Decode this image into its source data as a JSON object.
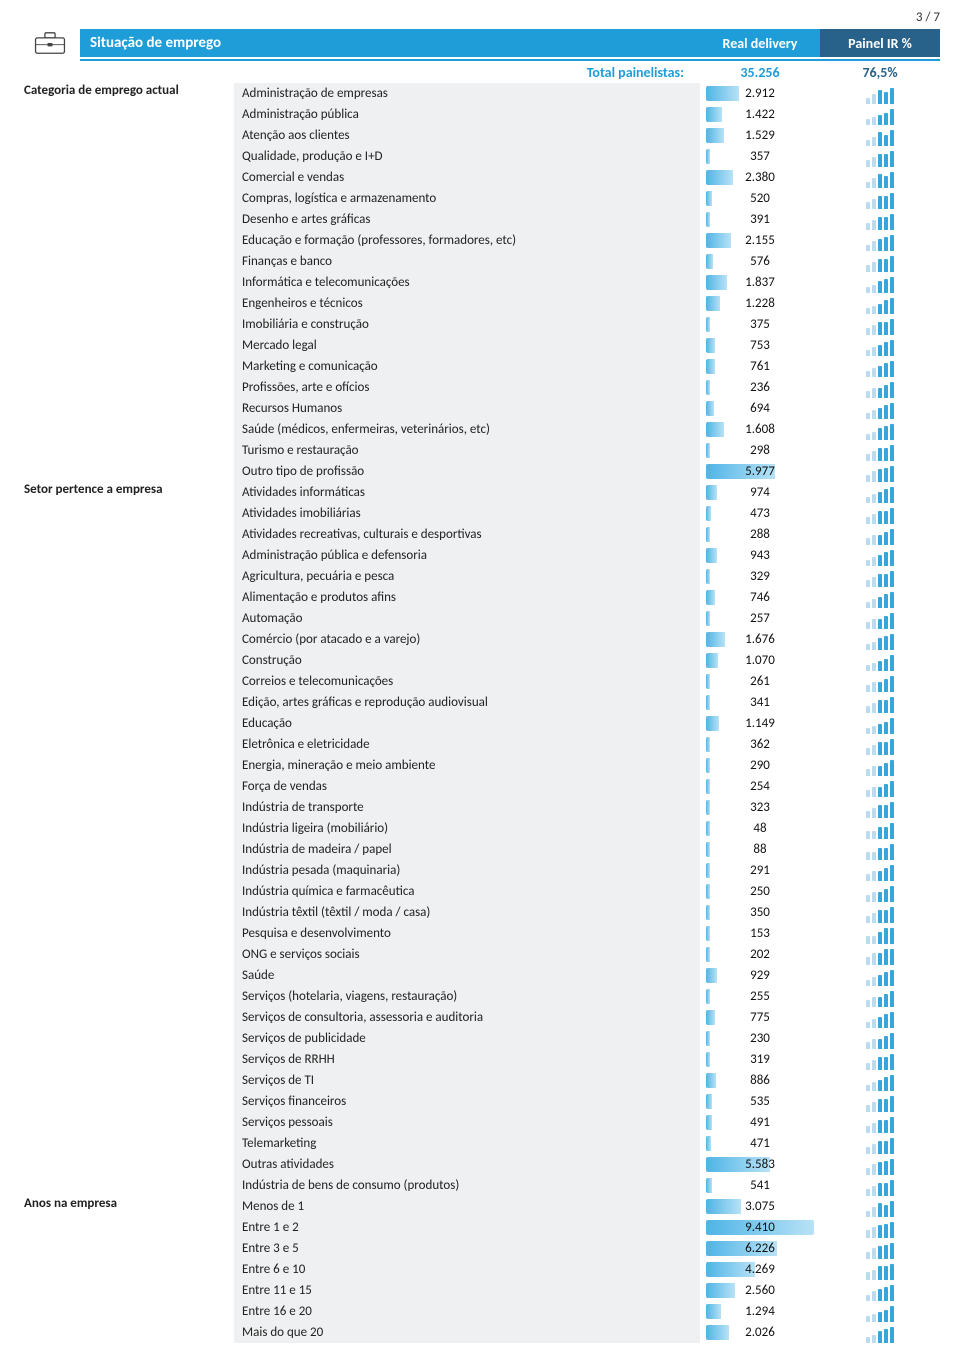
{
  "page_number": "3 / 7",
  "header": {
    "title": "Situação de emprego",
    "col1": "Real delivery",
    "col2": "Painel IR %"
  },
  "total_row": {
    "label": "Total painelistas:",
    "value1": "35.256",
    "value2": "76,5%"
  },
  "bar_max": 9410,
  "colors": {
    "primary": "#1f9dd9",
    "secondary": "#28628a",
    "row_bg": "#eef0f1",
    "bar_start": "#4fb4e6",
    "bar_end": "#b8e2f6"
  },
  "groups": [
    {
      "name": "Categoria de emprego actual",
      "rows": [
        {
          "label": "Administração de empresas",
          "value_text": "2.912",
          "value_num": 2912,
          "spark": [
            1,
            3,
            5,
            4,
            6
          ]
        },
        {
          "label": "Administração pública",
          "value_text": "1.422",
          "value_num": 1422,
          "spark": [
            1,
            2,
            3,
            4,
            6
          ]
        },
        {
          "label": "Atenção aos clientes",
          "value_text": "1.529",
          "value_num": 1529,
          "spark": [
            1,
            2,
            4,
            3,
            5
          ]
        },
        {
          "label": "Qualidade, produção e I+D",
          "value_text": "357",
          "value_num": 357,
          "spark": [
            1,
            2,
            3,
            3,
            4
          ]
        },
        {
          "label": "Comercial e vendas",
          "value_text": "2.380",
          "value_num": 2380,
          "spark": [
            1,
            3,
            5,
            4,
            6
          ]
        },
        {
          "label": "Compras, logística e armazenamento",
          "value_text": "520",
          "value_num": 520,
          "spark": [
            1,
            2,
            3,
            3,
            4
          ]
        },
        {
          "label": "Desenho e artes gráficas",
          "value_text": "391",
          "value_num": 391,
          "spark": [
            1,
            2,
            3,
            3,
            4
          ]
        },
        {
          "label": "Educação e formação (professores, formadores, etc)",
          "value_text": "2.155",
          "value_num": 2155,
          "spark": [
            1,
            3,
            4,
            5,
            6
          ]
        },
        {
          "label": "Finanças e banco",
          "value_text": "576",
          "value_num": 576,
          "spark": [
            1,
            2,
            3,
            3,
            4
          ]
        },
        {
          "label": "Informática e telecomunicações",
          "value_text": "1.837",
          "value_num": 1837,
          "spark": [
            1,
            2,
            4,
            5,
            6
          ]
        },
        {
          "label": "Engenheiros e técnicos",
          "value_text": "1.228",
          "value_num": 1228,
          "spark": [
            1,
            2,
            3,
            5,
            6
          ]
        },
        {
          "label": "Imobiliária e construção",
          "value_text": "375",
          "value_num": 375,
          "spark": [
            1,
            2,
            3,
            3,
            4
          ]
        },
        {
          "label": "Mercado legal",
          "value_text": "753",
          "value_num": 753,
          "spark": [
            1,
            2,
            3,
            4,
            5
          ]
        },
        {
          "label": "Marketing e comunicação",
          "value_text": "761",
          "value_num": 761,
          "spark": [
            1,
            2,
            3,
            4,
            5
          ]
        },
        {
          "label": "Profissões, arte e ofícios",
          "value_text": "236",
          "value_num": 236,
          "spark": [
            1,
            2,
            2,
            3,
            4
          ]
        },
        {
          "label": "Recursos Humanos",
          "value_text": "694",
          "value_num": 694,
          "spark": [
            1,
            2,
            3,
            4,
            5
          ]
        },
        {
          "label": "Saúde (médicos, enfermeiras, veterinários, etc)",
          "value_text": "1.608",
          "value_num": 1608,
          "spark": [
            1,
            2,
            4,
            5,
            6
          ]
        },
        {
          "label": "Turismo e restauração",
          "value_text": "298",
          "value_num": 298,
          "spark": [
            1,
            2,
            3,
            3,
            4
          ]
        },
        {
          "label": "Outro tipo de profissão",
          "value_text": "5.977",
          "value_num": 5977,
          "spark": [
            2,
            4,
            5,
            6,
            7
          ]
        }
      ]
    },
    {
      "name": "Setor pertence a empresa",
      "rows": [
        {
          "label": "Atividades informáticas",
          "value_text": "974",
          "value_num": 974,
          "spark": [
            1,
            2,
            3,
            4,
            5
          ]
        },
        {
          "label": "Atividades imobiliárias",
          "value_text": "473",
          "value_num": 473,
          "spark": [
            1,
            2,
            3,
            3,
            4
          ]
        },
        {
          "label": "Atividades recreativas, culturais e desportivas",
          "value_text": "288",
          "value_num": 288,
          "spark": [
            1,
            2,
            2,
            3,
            4
          ]
        },
        {
          "label": "Administração pública e defensoria",
          "value_text": "943",
          "value_num": 943,
          "spark": [
            1,
            2,
            3,
            4,
            5
          ]
        },
        {
          "label": "Agricultura, pecuária e pesca",
          "value_text": "329",
          "value_num": 329,
          "spark": [
            1,
            2,
            3,
            3,
            4
          ]
        },
        {
          "label": "Alimentação e produtos afins",
          "value_text": "746",
          "value_num": 746,
          "spark": [
            1,
            2,
            3,
            4,
            5
          ]
        },
        {
          "label": "Automação",
          "value_text": "257",
          "value_num": 257,
          "spark": [
            1,
            2,
            2,
            3,
            4
          ]
        },
        {
          "label": "Comércio (por atacado e a varejo)",
          "value_text": "1.676",
          "value_num": 1676,
          "spark": [
            1,
            2,
            4,
            5,
            6
          ]
        },
        {
          "label": "Construção",
          "value_text": "1.070",
          "value_num": 1070,
          "spark": [
            1,
            2,
            3,
            4,
            6
          ]
        },
        {
          "label": "Correios e telecomunicações",
          "value_text": "261",
          "value_num": 261,
          "spark": [
            1,
            2,
            2,
            3,
            4
          ]
        },
        {
          "label": "Edição, artes gráficas e reprodução audiovisual",
          "value_text": "341",
          "value_num": 341,
          "spark": [
            1,
            2,
            3,
            3,
            4
          ]
        },
        {
          "label": "Educação",
          "value_text": "1.149",
          "value_num": 1149,
          "spark": [
            1,
            2,
            3,
            4,
            6
          ]
        },
        {
          "label": "Eletrônica e eletricidade",
          "value_text": "362",
          "value_num": 362,
          "spark": [
            1,
            2,
            3,
            3,
            4
          ]
        },
        {
          "label": "Energia, mineração e meio ambiente",
          "value_text": "290",
          "value_num": 290,
          "spark": [
            1,
            2,
            2,
            3,
            4
          ]
        },
        {
          "label": "Força de vendas",
          "value_text": "254",
          "value_num": 254,
          "spark": [
            1,
            2,
            2,
            3,
            4
          ]
        },
        {
          "label": "Indústria de transporte",
          "value_text": "323",
          "value_num": 323,
          "spark": [
            1,
            2,
            3,
            3,
            4
          ]
        },
        {
          "label": "Indústria ligeira (mobiliário)",
          "value_text": "48",
          "value_num": 48,
          "spark": [
            1,
            1,
            2,
            2,
            3
          ]
        },
        {
          "label": "Indústria de madeira / papel",
          "value_text": "88",
          "value_num": 88,
          "spark": [
            1,
            1,
            2,
            2,
            3
          ]
        },
        {
          "label": "Indústria pesada (maquinaria)",
          "value_text": "291",
          "value_num": 291,
          "spark": [
            1,
            2,
            2,
            3,
            4
          ]
        },
        {
          "label": "Indústria química e farmacêutica",
          "value_text": "250",
          "value_num": 250,
          "spark": [
            1,
            2,
            2,
            3,
            4
          ]
        },
        {
          "label": "Indústria têxtil (têxtil / moda / casa)",
          "value_text": "350",
          "value_num": 350,
          "spark": [
            1,
            2,
            3,
            3,
            4
          ]
        },
        {
          "label": "Pesquisa e desenvolvimento",
          "value_text": "153",
          "value_num": 153,
          "spark": [
            1,
            1,
            2,
            3,
            3
          ]
        },
        {
          "label": "ONG e serviços sociais",
          "value_text": "202",
          "value_num": 202,
          "spark": [
            1,
            2,
            2,
            3,
            3
          ]
        },
        {
          "label": "Saúde",
          "value_text": "929",
          "value_num": 929,
          "spark": [
            1,
            2,
            3,
            4,
            5
          ]
        },
        {
          "label": "Serviços (hotelaria, viagens, restauração)",
          "value_text": "255",
          "value_num": 255,
          "spark": [
            1,
            2,
            2,
            3,
            4
          ]
        },
        {
          "label": "Serviços de consultoria, assessoria e auditoria",
          "value_text": "775",
          "value_num": 775,
          "spark": [
            1,
            2,
            3,
            4,
            5
          ]
        },
        {
          "label": "Serviços de publicidade",
          "value_text": "230",
          "value_num": 230,
          "spark": [
            1,
            2,
            2,
            3,
            4
          ]
        },
        {
          "label": "Serviços de RRHH",
          "value_text": "319",
          "value_num": 319,
          "spark": [
            1,
            2,
            3,
            3,
            4
          ]
        },
        {
          "label": "Serviços de TI",
          "value_text": "886",
          "value_num": 886,
          "spark": [
            1,
            2,
            3,
            4,
            5
          ]
        },
        {
          "label": "Serviços financeiros",
          "value_text": "535",
          "value_num": 535,
          "spark": [
            1,
            2,
            3,
            3,
            4
          ]
        },
        {
          "label": "Serviços pessoais",
          "value_text": "491",
          "value_num": 491,
          "spark": [
            1,
            2,
            3,
            3,
            4
          ]
        },
        {
          "label": "Telemarketing",
          "value_text": "471",
          "value_num": 471,
          "spark": [
            1,
            2,
            3,
            3,
            4
          ]
        },
        {
          "label": "Outras atividades",
          "value_text": "5.583",
          "value_num": 5583,
          "spark": [
            2,
            4,
            5,
            6,
            7
          ]
        },
        {
          "label": "Indústria de bens de consumo (produtos)",
          "value_text": "541",
          "value_num": 541,
          "spark": [
            1,
            2,
            3,
            3,
            4
          ]
        }
      ]
    },
    {
      "name": "Anos na empresa",
      "rows": [
        {
          "label": "Menos de 1",
          "value_text": "3.075",
          "value_num": 3075,
          "spark": [
            1,
            3,
            5,
            4,
            6
          ]
        },
        {
          "label": "Entre 1 e 2",
          "value_text": "9.410",
          "value_num": 9410,
          "spark": [
            3,
            5,
            6,
            7,
            8
          ]
        },
        {
          "label": "Entre 3 e 5",
          "value_text": "6.226",
          "value_num": 6226,
          "spark": [
            2,
            4,
            5,
            6,
            7
          ]
        },
        {
          "label": "Entre 6 e 10",
          "value_text": "4.269",
          "value_num": 4269,
          "spark": [
            2,
            3,
            5,
            5,
            6
          ]
        },
        {
          "label": "Entre 11 e 15",
          "value_text": "2.560",
          "value_num": 2560,
          "spark": [
            1,
            3,
            4,
            5,
            6
          ]
        },
        {
          "label": "Entre 16 e 20",
          "value_text": "1.294",
          "value_num": 1294,
          "spark": [
            1,
            2,
            3,
            4,
            6
          ]
        },
        {
          "label": "Mais do que 20",
          "value_text": "2.026",
          "value_num": 2026,
          "spark": [
            1,
            2,
            4,
            5,
            6
          ]
        }
      ]
    }
  ]
}
